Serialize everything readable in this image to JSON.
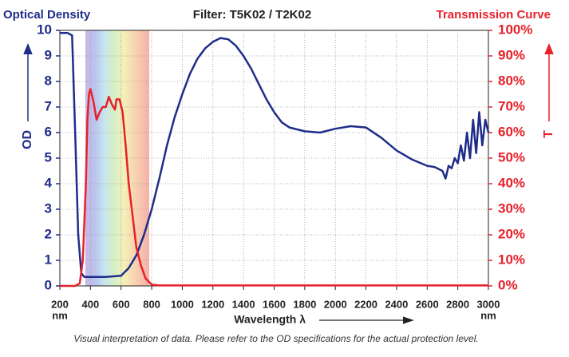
{
  "chart_data": {
    "type": "line",
    "title": "Filter: T5K02 / T2K02",
    "y_title": "Optical Density",
    "y2_title": "Transmission Curve",
    "ylabel": "OD",
    "y2label": "T",
    "xlabel": "Wavelength λ",
    "xunit": "nm",
    "note": "Visual interpretation of data. Please refer to the OD specifications for the actual protection level.",
    "xlim": [
      200,
      3000
    ],
    "xticks": [
      200,
      400,
      600,
      800,
      1000,
      1200,
      1400,
      1600,
      1800,
      2000,
      2200,
      2400,
      2600,
      2800,
      3000
    ],
    "ylim": [
      0,
      10
    ],
    "yticks": [
      0,
      1,
      2,
      3,
      4,
      5,
      6,
      7,
      8,
      9,
      10
    ],
    "y2lim": [
      0,
      100
    ],
    "y2ticks": [
      {
        "value": 0,
        "label": "0%"
      },
      {
        "value": 10,
        "label": "10%"
      },
      {
        "value": 20,
        "label": "20%"
      },
      {
        "value": 30,
        "label": "30%"
      },
      {
        "value": 40,
        "label": "40%"
      },
      {
        "value": 50,
        "label": "50%"
      },
      {
        "value": 60,
        "label": "60%"
      },
      {
        "value": 70,
        "label": "70%"
      },
      {
        "value": 80,
        "label": "80%"
      },
      {
        "value": 90,
        "label": "90%"
      },
      {
        "value": 100,
        "label": "100%"
      }
    ],
    "grid": true,
    "series": [
      {
        "color": "#1f2d8a",
        "axis": "y",
        "x": [
          200,
          250,
          280,
          300,
          320,
          340,
          360,
          400,
          500,
          600,
          650,
          700,
          750,
          800,
          850,
          900,
          950,
          1000,
          1050,
          1100,
          1150,
          1200,
          1250,
          1300,
          1350,
          1400,
          1450,
          1500,
          1550,
          1600,
          1650,
          1700,
          1800,
          1900,
          2000,
          2100,
          2200,
          2300,
          2400,
          2500,
          2600,
          2650,
          2700,
          2720,
          2740,
          2760,
          2780,
          2800,
          2820,
          2840,
          2860,
          2880,
          2900,
          2920,
          2940,
          2960,
          2980,
          3000
        ],
        "values": [
          9.9,
          9.9,
          9.8,
          6,
          2,
          0.5,
          0.35,
          0.35,
          0.35,
          0.4,
          0.7,
          1.2,
          2,
          3,
          4.2,
          5.5,
          6.6,
          7.5,
          8.3,
          8.9,
          9.3,
          9.55,
          9.7,
          9.65,
          9.4,
          9.0,
          8.5,
          7.9,
          7.3,
          6.8,
          6.4,
          6.2,
          6.05,
          6.0,
          6.15,
          6.25,
          6.2,
          5.8,
          5.3,
          4.95,
          4.7,
          4.65,
          4.5,
          4.2,
          4.7,
          4.6,
          5.0,
          4.8,
          5.5,
          4.9,
          6.0,
          5.0,
          6.5,
          5.2,
          6.8,
          5.5,
          6.5,
          6.0
        ]
      },
      {
        "color": "#e8202a",
        "axis": "y2",
        "x": [
          200,
          300,
          330,
          350,
          370,
          380,
          390,
          400,
          420,
          440,
          460,
          480,
          500,
          520,
          540,
          560,
          570,
          590,
          610,
          630,
          650,
          680,
          700,
          730,
          760,
          800,
          850,
          3000
        ],
        "values": [
          0,
          0,
          1,
          10,
          40,
          65,
          75,
          77,
          72,
          65,
          68,
          70,
          70,
          74,
          71,
          69,
          73,
          73,
          68,
          55,
          40,
          25,
          15,
          8,
          3,
          0.5,
          0.2,
          0.2
        ]
      }
    ]
  }
}
